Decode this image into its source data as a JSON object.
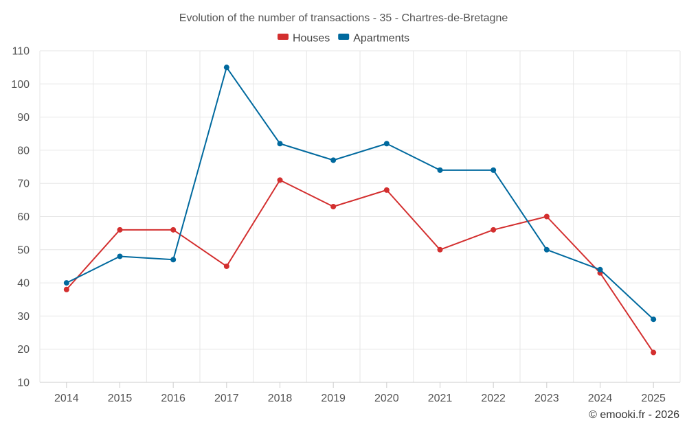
{
  "chart_data": {
    "type": "line",
    "title": "Evolution of the number of transactions - 35 - Chartres-de-Bretagne",
    "categories": [
      "2014",
      "2015",
      "2016",
      "2017",
      "2018",
      "2019",
      "2020",
      "2021",
      "2022",
      "2023",
      "2024",
      "2025"
    ],
    "series": [
      {
        "name": "Houses",
        "color": "#d32f2f",
        "values": [
          38,
          56,
          56,
          45,
          71,
          63,
          68,
          50,
          56,
          60,
          43,
          19
        ]
      },
      {
        "name": "Apartments",
        "color": "#00699e",
        "values": [
          40,
          48,
          47,
          105,
          82,
          77,
          82,
          74,
          74,
          50,
          44,
          29
        ]
      }
    ],
    "ylim": [
      10,
      110
    ],
    "yticks": [
      10,
      20,
      30,
      40,
      50,
      60,
      70,
      80,
      90,
      100,
      110
    ],
    "xlabel": "",
    "ylabel": "",
    "grid": true,
    "legend": "top-center"
  },
  "credit": "© emooki.fr - 2026"
}
